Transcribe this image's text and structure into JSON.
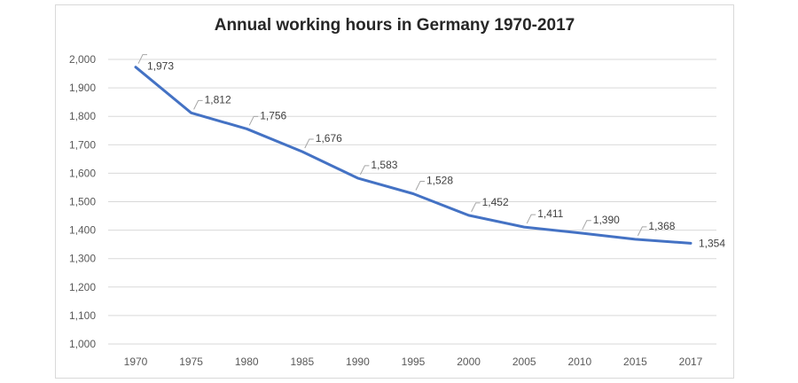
{
  "chart_data": {
    "type": "line",
    "title": "Annual working hours in Germany 1970-2017",
    "xlabel": "",
    "ylabel": "",
    "ylim": [
      1000,
      2000
    ],
    "y_ticks": [
      "1,000",
      "1,100",
      "1,200",
      "1,300",
      "1,400",
      "1,500",
      "1,600",
      "1,700",
      "1,800",
      "1,900",
      "2,000"
    ],
    "categories": [
      "1970",
      "1975",
      "1980",
      "1985",
      "1990",
      "1995",
      "2000",
      "2005",
      "2010",
      "2015",
      "2017"
    ],
    "series": [
      {
        "values": [
          1973,
          1812,
          1756,
          1676,
          1583,
          1528,
          1452,
          1411,
          1390,
          1368,
          1354
        ],
        "labels": [
          "1,973",
          "1,812",
          "1,756",
          "1,676",
          "1,583",
          "1,528",
          "1,452",
          "1,411",
          "1,390",
          "1,368",
          "1,354"
        ]
      }
    ],
    "grid": true,
    "legend": "none",
    "colors": {
      "line": "#4472c4",
      "grid": "#d9d9d9",
      "leader": "#a6a6a6"
    }
  }
}
